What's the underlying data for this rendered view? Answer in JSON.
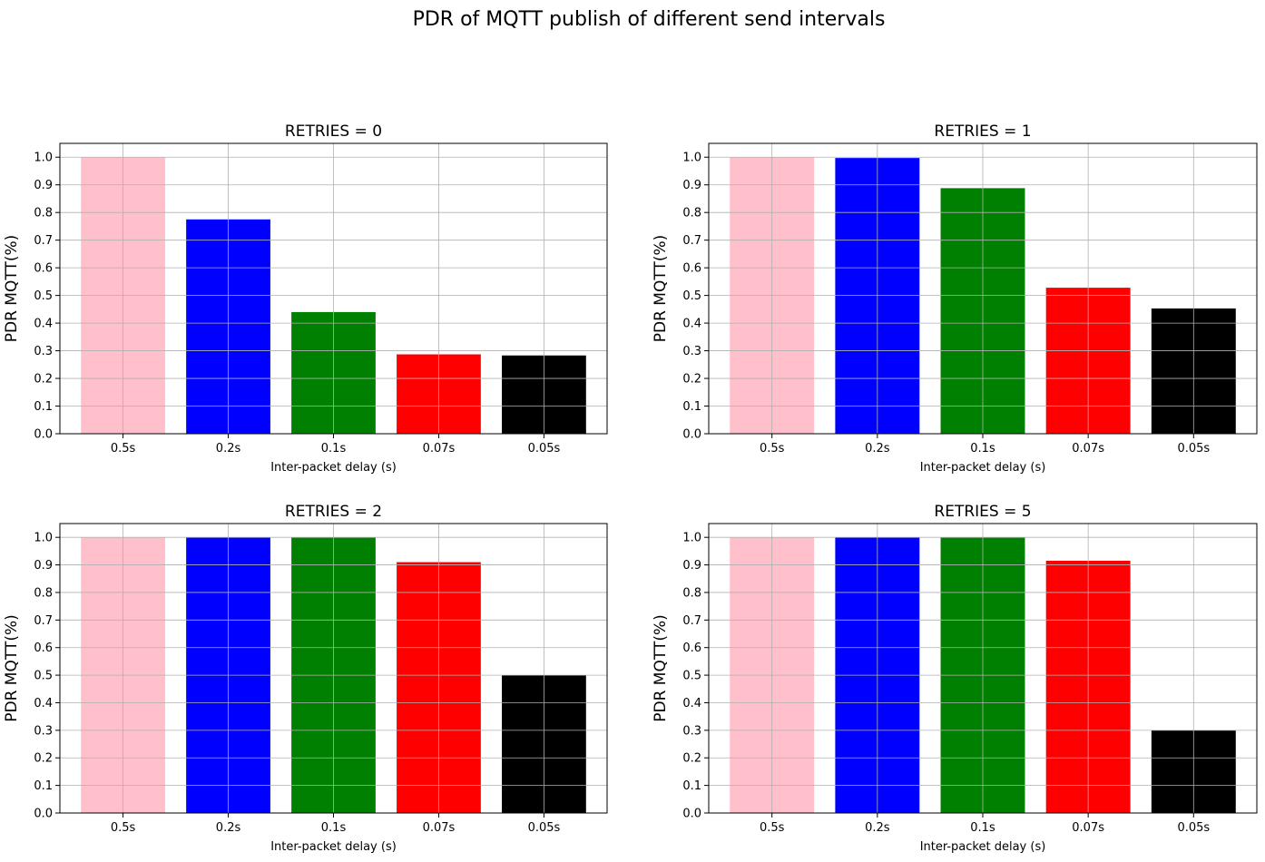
{
  "figure_title": "PDR of MQTT publish of different send intervals",
  "chart_data": [
    {
      "type": "bar",
      "title": "RETRIES = 0",
      "categories": [
        "0.5s",
        "0.2s",
        "0.1s",
        "0.07s",
        "0.05s"
      ],
      "values": [
        1.0,
        0.775,
        0.44,
        0.287,
        0.283
      ],
      "colors": [
        "#ffc0cb",
        "#0000ff",
        "#008000",
        "#ff0000",
        "#000000"
      ],
      "xlabel": "Inter-packet delay (s)",
      "ylabel": "PDR MQTT(%)",
      "ylim": [
        0,
        1.05
      ],
      "yticks": [
        "0.0",
        "0.1",
        "0.2",
        "0.3",
        "0.4",
        "0.5",
        "0.6",
        "0.7",
        "0.8",
        "0.9",
        "1.0"
      ],
      "grid": true
    },
    {
      "type": "bar",
      "title": "RETRIES = 1",
      "categories": [
        "0.5s",
        "0.2s",
        "0.1s",
        "0.07s",
        "0.05s"
      ],
      "values": [
        1.0,
        0.997,
        0.888,
        0.528,
        0.453
      ],
      "colors": [
        "#ffc0cb",
        "#0000ff",
        "#008000",
        "#ff0000",
        "#000000"
      ],
      "xlabel": "Inter-packet delay (s)",
      "ylabel": "PDR MQTT(%)",
      "ylim": [
        0,
        1.05
      ],
      "yticks": [
        "0.0",
        "0.1",
        "0.2",
        "0.3",
        "0.4",
        "0.5",
        "0.6",
        "0.7",
        "0.8",
        "0.9",
        "1.0"
      ],
      "grid": true
    },
    {
      "type": "bar",
      "title": "RETRIES = 2",
      "categories": [
        "0.5s",
        "0.2s",
        "0.1s",
        "0.07s",
        "0.05s"
      ],
      "values": [
        1.0,
        1.0,
        1.0,
        0.91,
        0.5
      ],
      "colors": [
        "#ffc0cb",
        "#0000ff",
        "#008000",
        "#ff0000",
        "#000000"
      ],
      "xlabel": "Inter-packet delay (s)",
      "ylabel": "PDR MQTT(%)",
      "ylim": [
        0,
        1.05
      ],
      "yticks": [
        "0.0",
        "0.1",
        "0.2",
        "0.3",
        "0.4",
        "0.5",
        "0.6",
        "0.7",
        "0.8",
        "0.9",
        "1.0"
      ],
      "grid": true
    },
    {
      "type": "bar",
      "title": "RETRIES = 5",
      "categories": [
        "0.5s",
        "0.2s",
        "0.1s",
        "0.07s",
        "0.05s"
      ],
      "values": [
        1.0,
        1.0,
        1.0,
        0.915,
        0.3
      ],
      "colors": [
        "#ffc0cb",
        "#0000ff",
        "#008000",
        "#ff0000",
        "#000000"
      ],
      "xlabel": "Inter-packet delay (s)",
      "ylabel": "PDR MQTT(%)",
      "ylim": [
        0,
        1.05
      ],
      "yticks": [
        "0.0",
        "0.1",
        "0.2",
        "0.3",
        "0.4",
        "0.5",
        "0.6",
        "0.7",
        "0.8",
        "0.9",
        "1.0"
      ],
      "grid": true
    }
  ]
}
